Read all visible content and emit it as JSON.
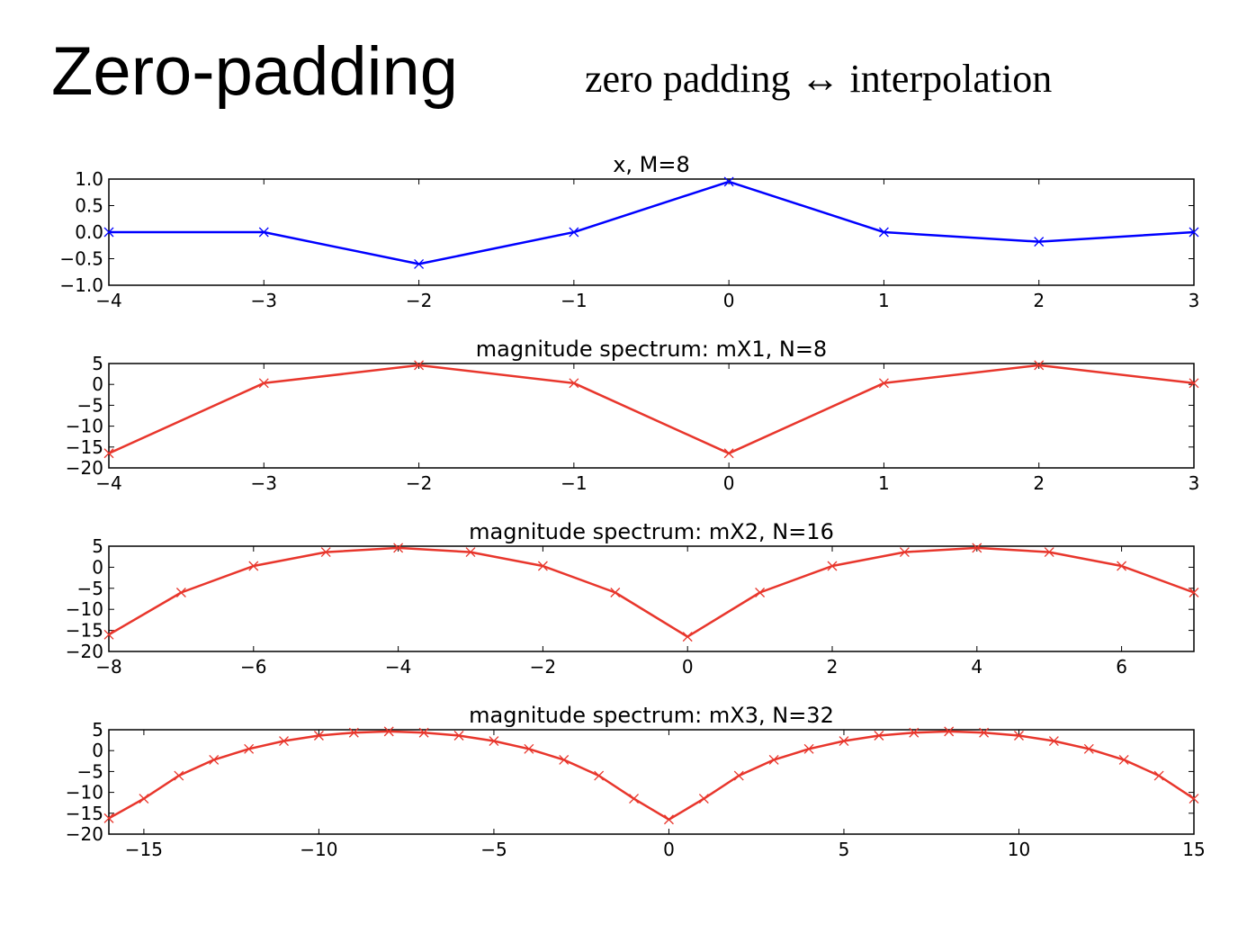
{
  "slide": {
    "title": "Zero-padding",
    "subtitle": "zero padding ↔ interpolation"
  },
  "chart_data": [
    {
      "type": "line",
      "title": "x, M=8",
      "color": "#0000ff",
      "marker": "x",
      "x": [
        -4,
        -3,
        -2,
        -1,
        0,
        1,
        2,
        3
      ],
      "y": [
        0.0,
        0.0,
        -0.6,
        0.0,
        0.95,
        0.0,
        -0.18,
        0.0
      ],
      "xlim": [
        -4,
        3
      ],
      "ylim": [
        -1.0,
        1.0
      ],
      "xticks": [
        -4,
        -3,
        -2,
        -1,
        0,
        1,
        2,
        3
      ],
      "yticks": [
        -1.0,
        -0.5,
        0.0,
        0.5,
        1.0
      ],
      "xtick_labels": [
        "−4",
        "−3",
        "−2",
        "−1",
        "0",
        "1",
        "2",
        "3"
      ],
      "ytick_labels": [
        "−1.0",
        "−0.5",
        "0.0",
        "0.5",
        "1.0"
      ],
      "grid": false
    },
    {
      "type": "line",
      "title": "magnitude spectrum: mX1, N=8",
      "color": "#e8362c",
      "marker": "x",
      "x": [
        -4,
        -3,
        -2,
        -1,
        0,
        1,
        2,
        3
      ],
      "y": [
        -16.5,
        0.3,
        4.6,
        0.3,
        -16.5,
        0.3,
        4.6,
        0.3
      ],
      "xlim": [
        -4,
        3
      ],
      "ylim": [
        -20,
        5
      ],
      "xticks": [
        -4,
        -3,
        -2,
        -1,
        0,
        1,
        2,
        3
      ],
      "yticks": [
        -20,
        -15,
        -10,
        -5,
        0,
        5
      ],
      "xtick_labels": [
        "−4",
        "−3",
        "−2",
        "−1",
        "0",
        "1",
        "2",
        "3"
      ],
      "ytick_labels": [
        "−20",
        "−15",
        "−10",
        "−5",
        "0",
        "5"
      ],
      "grid": false
    },
    {
      "type": "line",
      "title": "magnitude spectrum: mX2, N=16",
      "color": "#e8362c",
      "marker": "x",
      "x": [
        -8,
        -7,
        -6,
        -5,
        -4,
        -3,
        -2,
        -1,
        0,
        1,
        2,
        3,
        4,
        5,
        6,
        7
      ],
      "y": [
        -16.0,
        -6.0,
        0.3,
        3.6,
        4.6,
        3.6,
        0.3,
        -6.0,
        -16.5,
        -6.0,
        0.3,
        3.6,
        4.6,
        3.6,
        0.3,
        -6.0
      ],
      "xlim": [
        -8,
        7
      ],
      "ylim": [
        -20,
        5
      ],
      "xticks": [
        -8,
        -6,
        -4,
        -2,
        0,
        2,
        4,
        6
      ],
      "yticks": [
        -20,
        -15,
        -10,
        -5,
        0,
        5
      ],
      "xtick_labels": [
        "−8",
        "−6",
        "−4",
        "−2",
        "0",
        "2",
        "4",
        "6"
      ],
      "ytick_labels": [
        "−20",
        "−15",
        "−10",
        "−5",
        "0",
        "5"
      ],
      "grid": false
    },
    {
      "type": "line",
      "title": "magnitude spectrum: mX3, N=32",
      "color": "#e8362c",
      "marker": "x",
      "x": [
        -16,
        -15,
        -14,
        -13,
        -12,
        -11,
        -10,
        -9,
        -8,
        -7,
        -6,
        -5,
        -4,
        -3,
        -2,
        -1,
        0,
        1,
        2,
        3,
        4,
        5,
        6,
        7,
        8,
        9,
        10,
        11,
        12,
        13,
        14,
        15
      ],
      "y": [
        -16.2,
        -11.5,
        -6.0,
        -2.2,
        0.4,
        2.3,
        3.6,
        4.3,
        4.6,
        4.3,
        3.6,
        2.3,
        0.4,
        -2.2,
        -6.0,
        -11.5,
        -16.5,
        -11.5,
        -6.0,
        -2.2,
        0.4,
        2.3,
        3.6,
        4.3,
        4.6,
        4.3,
        3.6,
        2.3,
        0.4,
        -2.2,
        -6.0,
        -11.5
      ],
      "xlim": [
        -16,
        15
      ],
      "ylim": [
        -20,
        5
      ],
      "xticks": [
        -15,
        -10,
        -5,
        0,
        5,
        10,
        15
      ],
      "yticks": [
        -20,
        -15,
        -10,
        -5,
        0,
        5
      ],
      "xtick_labels": [
        "−15",
        "−10",
        "−5",
        "0",
        "5",
        "10",
        "15"
      ],
      "ytick_labels": [
        "−20",
        "−15",
        "−10",
        "−5",
        "0",
        "5"
      ],
      "grid": false
    }
  ]
}
